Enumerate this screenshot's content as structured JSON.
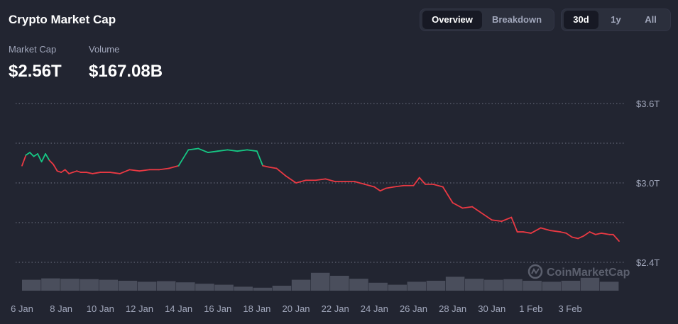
{
  "header": {
    "title": "Crypto Market Cap",
    "view_tabs": [
      {
        "label": "Overview",
        "active": true
      },
      {
        "label": "Breakdown",
        "active": false
      }
    ],
    "range_tabs": [
      {
        "label": "30d",
        "active": true
      },
      {
        "label": "1y",
        "active": false
      },
      {
        "label": "All",
        "active": false
      }
    ]
  },
  "stats": {
    "market_cap": {
      "label": "Market Cap",
      "value": "$2.56T"
    },
    "volume": {
      "label": "Volume",
      "value": "$167.08B"
    }
  },
  "watermark": {
    "text": "CoinMarketCap",
    "icon": "coinmarketcap-logo-icon"
  },
  "colors": {
    "background": "#222531",
    "up": "#16c784",
    "down": "#ea3943",
    "volume": "#4a4e5c",
    "grid": "#a1a7bb"
  },
  "chart_data": {
    "type": "line",
    "x_tick_labels": [
      "6 Jan",
      "8 Jan",
      "10 Jan",
      "12 Jan",
      "14 Jan",
      "16 Jan",
      "18 Jan",
      "20 Jan",
      "22 Jan",
      "24 Jan",
      "26 Jan",
      "28 Jan",
      "30 Jan",
      "1 Feb",
      "3 Feb"
    ],
    "x_range_days": [
      0,
      30.5
    ],
    "y_tick_labels": [
      "$3.6T",
      "$3.0T",
      "$2.4T"
    ],
    "y_ticks": [
      3.6,
      3.0,
      2.4
    ],
    "ylim": [
      2.4,
      3.6
    ],
    "y_unit": "T",
    "grid": true,
    "color_rule": "green above starting value, red below",
    "baseline": 3.13,
    "series": [
      {
        "values_x_days": [
          0,
          0.2,
          0.4,
          0.6,
          0.8,
          1.0,
          1.2,
          1.4,
          1.6,
          1.8,
          2.0,
          2.2,
          2.4,
          2.6,
          2.8,
          3.0,
          3.3,
          3.6,
          4.0,
          4.5,
          5.0,
          5.5,
          6.0,
          6.5,
          7.0,
          7.5,
          8.0,
          8.5,
          9.0,
          9.5,
          10.0,
          10.5,
          11.0,
          11.5,
          12.0,
          12.3,
          12.6,
          13.0,
          13.5,
          14.0,
          14.5,
          15.0,
          15.5,
          16.0,
          16.5,
          17.0,
          17.5,
          18.0,
          18.3,
          18.6,
          19.0,
          19.5,
          20.0,
          20.3,
          20.6,
          21.0,
          21.5,
          22.0,
          22.5,
          23.0,
          23.5,
          24.0,
          24.5,
          25.0,
          25.3,
          25.6,
          26.0,
          26.5,
          27.0,
          27.5,
          27.8,
          28.1,
          28.4,
          28.7,
          29.0,
          29.3,
          29.6,
          30.0,
          30.2,
          30.5
        ],
        "values_y": [
          3.13,
          3.21,
          3.23,
          3.2,
          3.22,
          3.16,
          3.22,
          3.17,
          3.14,
          3.09,
          3.08,
          3.1,
          3.07,
          3.08,
          3.09,
          3.08,
          3.08,
          3.07,
          3.08,
          3.08,
          3.07,
          3.1,
          3.09,
          3.1,
          3.1,
          3.11,
          3.13,
          3.25,
          3.26,
          3.23,
          3.24,
          3.25,
          3.24,
          3.25,
          3.24,
          3.13,
          3.12,
          3.11,
          3.05,
          3.0,
          3.02,
          3.02,
          3.03,
          3.01,
          3.01,
          3.01,
          2.99,
          2.97,
          2.94,
          2.96,
          2.97,
          2.98,
          2.98,
          3.04,
          2.99,
          2.99,
          2.97,
          2.85,
          2.81,
          2.82,
          2.77,
          2.72,
          2.71,
          2.74,
          2.63,
          2.63,
          2.62,
          2.66,
          2.64,
          2.63,
          2.62,
          2.59,
          2.58,
          2.6,
          2.63,
          2.61,
          2.62,
          2.61,
          2.61,
          2.56
        ]
      }
    ],
    "volume_relative": [
      0.55,
      0.62,
      0.6,
      0.58,
      0.55,
      0.5,
      0.45,
      0.48,
      0.42,
      0.35,
      0.3,
      0.2,
      0.15,
      0.25,
      0.55,
      0.9,
      0.75,
      0.6,
      0.4,
      0.3,
      0.45,
      0.5,
      0.7,
      0.6,
      0.55,
      0.58,
      0.5,
      0.45,
      0.5,
      0.65,
      0.45
    ]
  }
}
